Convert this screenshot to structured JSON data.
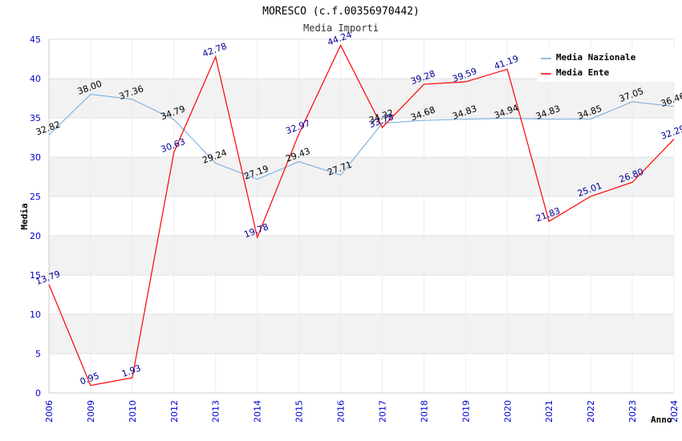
{
  "chart_data": {
    "type": "line",
    "title": "MORESCO (c.f.00356970442)",
    "subtitle": "Media Importi",
    "xlabel": "Anno",
    "ylabel": "Media",
    "ylim": [
      0,
      45
    ],
    "y_ticks": [
      0,
      5,
      10,
      15,
      20,
      25,
      30,
      35,
      40,
      45
    ],
    "grid": true,
    "legend_position": "top-right",
    "categories": [
      "2006",
      "2009",
      "2010",
      "2012",
      "2013",
      "2014",
      "2015",
      "2016",
      "2017",
      "2018",
      "2019",
      "2020",
      "2021",
      "2022",
      "2023",
      "2024"
    ],
    "series": [
      {
        "name": "Media Nazionale",
        "color": "#6fa8dc",
        "label_color": "#000000",
        "values": [
          32.82,
          38.0,
          37.36,
          34.79,
          29.24,
          27.19,
          29.43,
          27.71,
          34.32,
          34.68,
          34.83,
          34.94,
          34.83,
          34.85,
          37.05,
          36.46
        ],
        "labels": [
          "32.82",
          "38.00",
          "37.36",
          "34.79",
          "29.24",
          "27.19",
          "29.43",
          "27.71",
          "34.32",
          "34.68",
          "34.83",
          "34.94",
          "34.83",
          "34.85",
          "37.05",
          "36.46"
        ]
      },
      {
        "name": "Media Ente",
        "color": "#ff0000",
        "label_color": "#000099",
        "values": [
          13.79,
          0.95,
          1.93,
          30.63,
          42.78,
          19.78,
          32.97,
          44.24,
          33.78,
          39.28,
          39.59,
          41.19,
          21.83,
          25.01,
          26.8,
          32.29
        ],
        "labels": [
          "13.79",
          "0.95",
          "1.93",
          "30.63",
          "42.78",
          "19.78",
          "32.97",
          "44.24",
          "33.78",
          "39.28",
          "39.59",
          "41.19",
          "21.83",
          "25.01",
          "26.80",
          "32.29"
        ]
      }
    ]
  }
}
